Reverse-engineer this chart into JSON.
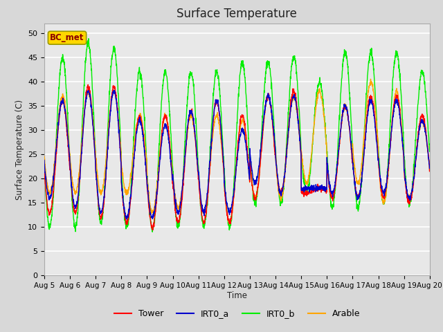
{
  "title": "Surface Temperature",
  "ylabel": "Surface Temperature (C)",
  "xlabel": "Time",
  "ylim": [
    0,
    52
  ],
  "yticks": [
    0,
    5,
    10,
    15,
    20,
    25,
    30,
    35,
    40,
    45,
    50
  ],
  "annotation_text": "BC_met",
  "annotation_color": "#8B0000",
  "annotation_bg": "#FFD700",
  "fig_bg": "#D8D8D8",
  "plot_bg": "#E8E8E8",
  "series": {
    "Tower": {
      "color": "#FF0000",
      "lw": 1.0
    },
    "IRT0_a": {
      "color": "#0000CC",
      "lw": 1.0
    },
    "IRT0_b": {
      "color": "#00EE00",
      "lw": 1.0
    },
    "Arable": {
      "color": "#FFA500",
      "lw": 1.0
    }
  },
  "x_tick_labels": [
    "Aug 5",
    "Aug 6",
    "Aug 7",
    "Aug 8",
    "Aug 9",
    "Aug 10",
    "Aug 11",
    "Aug 12",
    "Aug 13",
    "Aug 14",
    "Aug 15",
    "Aug 16",
    "Aug 17",
    "Aug 18",
    "Aug 19",
    "Aug 20"
  ],
  "x_tick_positions": [
    0,
    24,
    48,
    72,
    96,
    120,
    144,
    168,
    192,
    216,
    240,
    264,
    288,
    312,
    336,
    360
  ],
  "day_data": {
    "Tower_min": [
      13,
      13,
      12,
      11,
      10,
      11,
      11,
      11,
      16,
      17,
      17,
      16,
      16,
      16,
      15
    ],
    "Tower_max": [
      36,
      39,
      39,
      33,
      33,
      34,
      36,
      33,
      37,
      38,
      18,
      35,
      37,
      37,
      33
    ],
    "IRT0a_min": [
      16,
      14,
      13,
      12,
      12,
      13,
      13,
      13,
      19,
      17,
      18,
      17,
      16,
      17,
      16
    ],
    "IRT0a_max": [
      36,
      38,
      38,
      32,
      31,
      34,
      36,
      30,
      37,
      37,
      18,
      35,
      36,
      36,
      32
    ],
    "IRT0b_min": [
      10,
      10,
      11,
      10,
      9.5,
      10,
      10,
      10,
      15,
      15,
      17,
      14,
      14,
      15,
      15
    ],
    "IRT0b_max": [
      45,
      48,
      47,
      42,
      42,
      42,
      42,
      44,
      44,
      45,
      40,
      46,
      46,
      46,
      42
    ],
    "Arable_min": [
      17,
      17,
      17,
      17,
      13,
      14,
      13,
      11,
      16,
      16,
      19,
      16,
      19,
      15,
      16
    ],
    "Arable_max": [
      37,
      38,
      38,
      33,
      33,
      33,
      33,
      32,
      37,
      37,
      38,
      35,
      40,
      38,
      32
    ]
  }
}
